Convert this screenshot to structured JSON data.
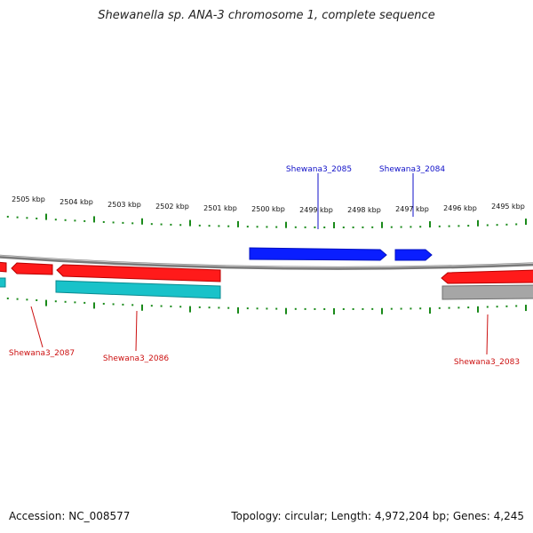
{
  "title": "Shewanella sp. ANA-3 chromosome 1, complete sequence",
  "footer": {
    "accession": "Accession: NC_008577",
    "summary": "Topology: circular; Length: 4,972,204 bp; Genes: 4,245"
  },
  "colors": {
    "forward_gene": "#0a1eff",
    "reverse_gene": "#ff1a1a",
    "rna_gene": "#19c2c9",
    "pseudo_gene": "#a6a6a6",
    "tick": "#1a8a1a",
    "backbone": "#8a8a8a",
    "label_forward": "#1010c8",
    "label_reverse": "#cc1010"
  },
  "scale_labels": [
    "2505 kbp",
    "2504 kbp",
    "2503 kbp",
    "2502 kbp",
    "2501 kbp",
    "2500 kbp",
    "2499 kbp",
    "2498 kbp",
    "2497 kbp",
    "2496 kbp",
    "2495 kbp"
  ],
  "gene_labels": {
    "g2085": "Shewana3_2085",
    "g2084": "Shewana3_2084",
    "g2087": "Shewana3_2087",
    "g2086": "Shewana3_2086",
    "g2083": "Shewana3_2083"
  }
}
